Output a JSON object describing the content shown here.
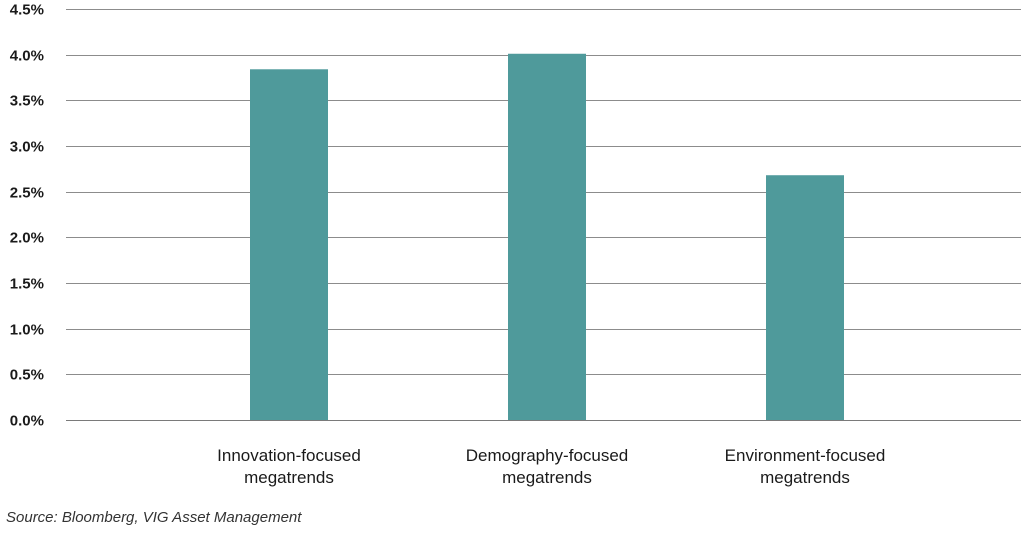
{
  "chart_data": {
    "type": "bar",
    "categories": [
      [
        "Innovation-focused",
        "megatrends"
      ],
      [
        "Demography-focused",
        "megatrends"
      ],
      [
        "Environment-focused",
        "megatrends"
      ]
    ],
    "values": [
      3.84,
      4.01,
      2.68
    ],
    "ylim": [
      0,
      4.5
    ],
    "yticks": [
      "0.0%",
      "0.5%",
      "1.0%",
      "1.5%",
      "2.0%",
      "2.5%",
      "3.0%",
      "3.5%",
      "4.0%",
      "4.5%"
    ],
    "ytick_values": [
      0,
      0.5,
      1.0,
      1.5,
      2.0,
      2.5,
      3.0,
      3.5,
      4.0,
      4.5
    ],
    "grid": true,
    "legend": "none",
    "bar_color": "#4f9a9b",
    "title": "",
    "xlabel": "",
    "ylabel": ""
  },
  "source": "Source: Bloomberg, VIG Asset Management"
}
